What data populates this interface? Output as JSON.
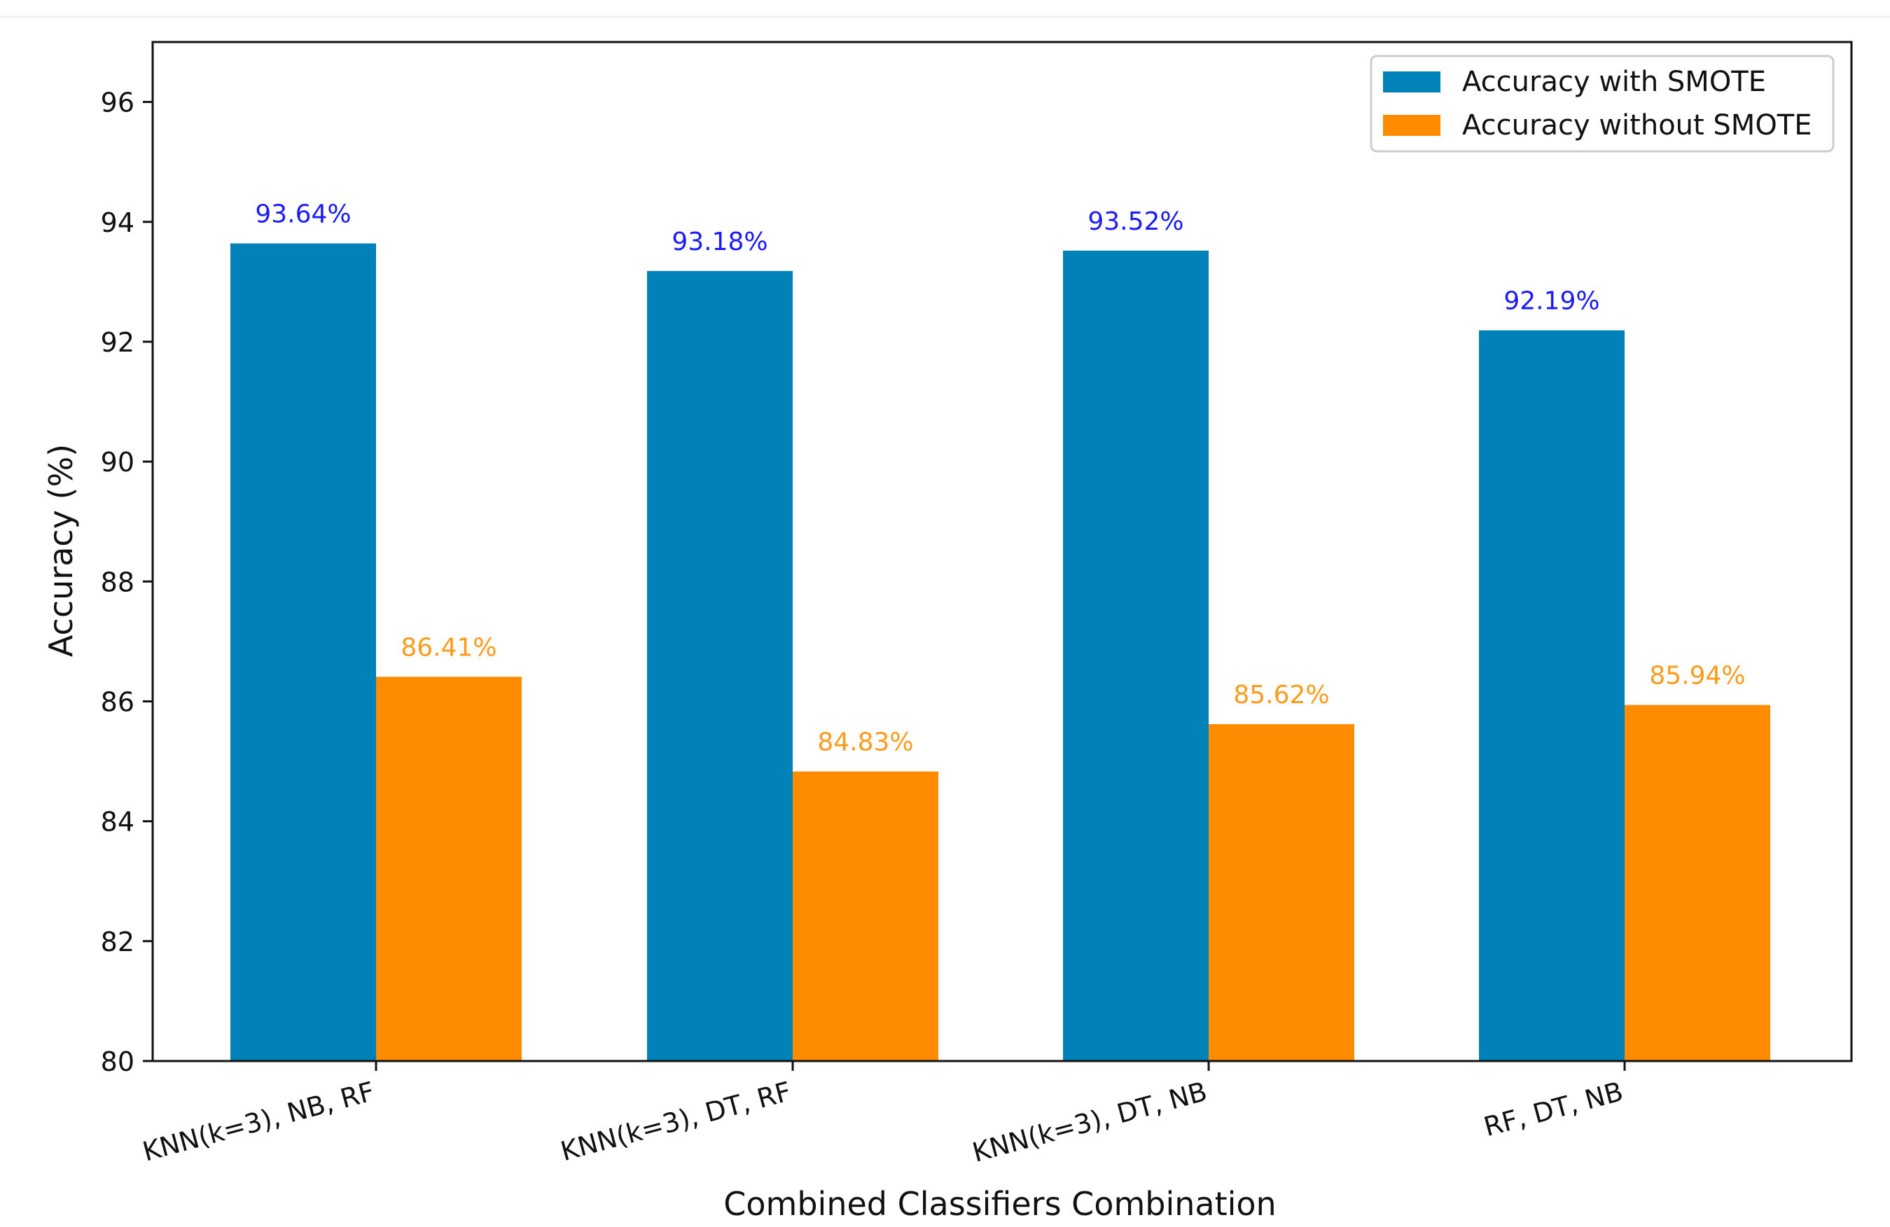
{
  "chart_data": {
    "type": "bar",
    "title": "",
    "xlabel": "Combined Classifiers Combination",
    "ylabel": "Accuracy (%)",
    "ylim": [
      80,
      97
    ],
    "yticks": [
      80,
      82,
      84,
      86,
      88,
      90,
      92,
      94,
      96
    ],
    "categories": [
      "KNN(k=3), NB, RF",
      "KNN(k=3), DT, RF",
      "KNN(k=3), DT, NB",
      "RF, DT, NB"
    ],
    "series": [
      {
        "name": "Accuracy with SMOTE",
        "color": "#0081b8",
        "label_color": "#1a1aff",
        "values": [
          93.64,
          93.18,
          93.52,
          92.19
        ],
        "labels": [
          "93.64%",
          "93.18%",
          "93.52%",
          "92.19%"
        ]
      },
      {
        "name": "Accuracy without SMOTE",
        "color": "#ff8c00",
        "label_color": "#ff9a1a",
        "values": [
          86.41,
          84.83,
          85.62,
          85.94
        ],
        "labels": [
          "86.41%",
          "84.83%",
          "85.62%",
          "85.94%"
        ]
      }
    ],
    "legend_position": "top-right",
    "grid": false
  }
}
